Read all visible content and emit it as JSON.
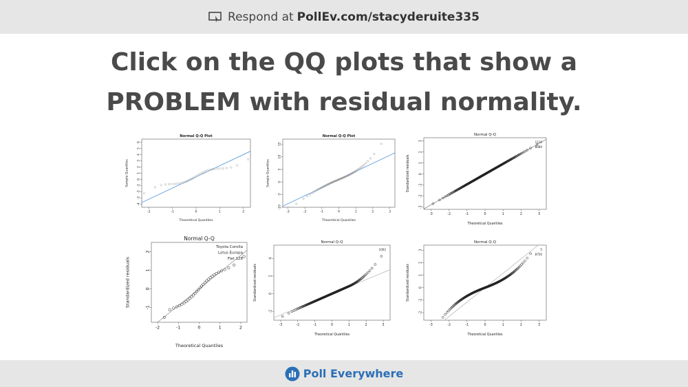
{
  "header": {
    "respond_prefix": "Respond at",
    "url": "PollEv.com/stacyderuite335"
  },
  "question": {
    "text": "Click on the QQ plots that show a PROBLEM with residual normality."
  },
  "plots": [
    {
      "title": "Normal Q-Q Plot",
      "xlabel": "Theoretical Quantiles",
      "ylabel": "Sample Quantiles",
      "xticks": [
        "-2",
        "-1",
        "0",
        "1",
        "2"
      ],
      "yticks": [
        "-4",
        "-3",
        "-2",
        "-1",
        "0",
        "1",
        "2",
        "3",
        "4",
        "5",
        "6"
      ],
      "ylim": [
        -4.5,
        6.5
      ],
      "xlim": [
        -2.3,
        2.3
      ],
      "point_labels": []
    },
    {
      "title": "Normal Q-Q Plot",
      "xlabel": "Theoretical Quantiles",
      "ylabel": "Sample Quantiles",
      "xticks": [
        "-3",
        "-2",
        "-1",
        "0",
        "1",
        "2",
        "3"
      ],
      "yticks": [
        "-10",
        "-5",
        "0",
        "5",
        "10",
        "15"
      ],
      "ylim": [
        -10,
        17
      ],
      "xlim": [
        -3.3,
        3.3
      ],
      "point_labels": []
    },
    {
      "title": "Normal Q-Q",
      "xlabel": "Theoretical Quantiles",
      "ylabel": "Standardized residuals",
      "xticks": [
        "-3",
        "-2",
        "-1",
        "0",
        "1",
        "2",
        "3"
      ],
      "yticks": [
        "-3",
        "-2",
        "-1",
        "0",
        "1",
        "2",
        "3"
      ],
      "ylim": [
        -3.2,
        3.3
      ],
      "xlim": [
        -3.4,
        3.4
      ],
      "point_labels": [
        "1110",
        "8089"
      ]
    },
    {
      "title": "Normal Q-Q",
      "xlabel": "Theoretical Quantiles",
      "ylabel": "Standardized residuals",
      "xticks": [
        "-2",
        "-1",
        "0",
        "1",
        "2"
      ],
      "yticks": [
        "-1",
        "0",
        "1",
        "2"
      ],
      "ylim": [
        -1.8,
        2.5
      ],
      "xlim": [
        -2.3,
        2.3
      ],
      "point_labels": [
        "Toyota Corolla",
        "Lotus Europa",
        "Fiat 128"
      ]
    },
    {
      "title": "Normal Q-Q",
      "xlabel": "Theoretical Quantiles",
      "ylabel": "Standardized residuals",
      "xticks": [
        "-3",
        "-2",
        "-1",
        "0",
        "1",
        "2",
        "3"
      ],
      "yticks": [
        "-2",
        "0",
        "2",
        "4"
      ],
      "ylim": [
        -3,
        5.5
      ],
      "xlim": [
        -3.4,
        3.4
      ],
      "point_labels": [
        "1002"
      ]
    },
    {
      "title": "Normal Q-Q",
      "xlabel": "Theoretical Quantiles",
      "ylabel": "Standardized residuals",
      "xticks": [
        "-3",
        "-2",
        "-1",
        "0",
        "1",
        "2",
        "3"
      ],
      "yticks": [
        "-2",
        "-1",
        "0",
        "1",
        "2",
        "3"
      ],
      "ylim": [
        -2.6,
        3.4
      ],
      "xlim": [
        -3.4,
        3.4
      ],
      "point_labels": [
        "5",
        "8750"
      ]
    }
  ],
  "footer": {
    "brand": "Poll Everywhere",
    "brand_color": "#2b6fb6"
  }
}
